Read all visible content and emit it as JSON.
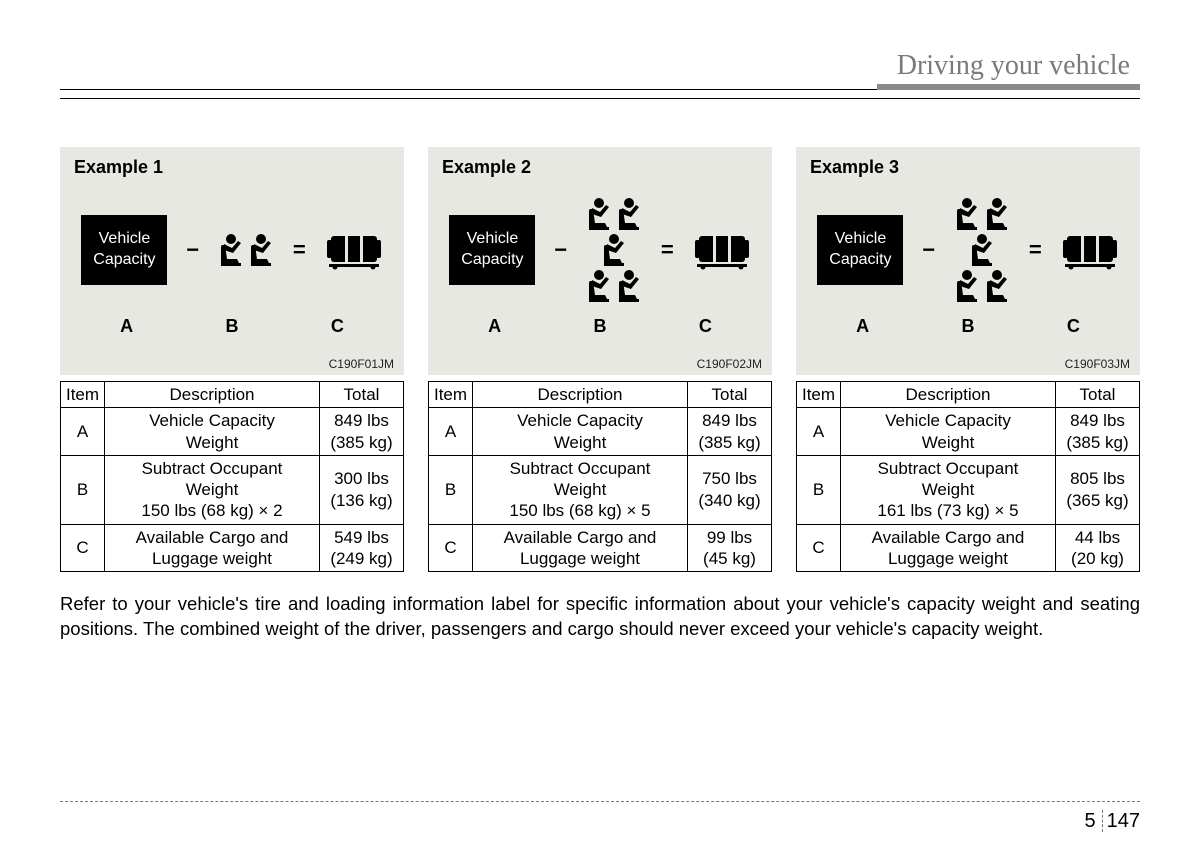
{
  "header": {
    "title": "Driving your vehicle"
  },
  "examples": [
    {
      "title": "Example 1",
      "imgcode": "C190F01JM",
      "vcap_line1": "Vehicle",
      "vcap_line2": "Capacity",
      "seat_rows": [
        2
      ],
      "abc": [
        "A",
        "B",
        "C"
      ],
      "table": {
        "headers": [
          "Item",
          "Description",
          "Total"
        ],
        "rows": [
          {
            "item": "A",
            "desc": "Vehicle Capacity<br>Weight",
            "total": "849 lbs<br>(385 kg)"
          },
          {
            "item": "B",
            "desc": "Subtract Occupant<br>Weight<br>150 lbs (68 kg) × 2",
            "total": "300 lbs<br>(136 kg)"
          },
          {
            "item": "C",
            "desc": "Available Cargo and<br>Luggage weight",
            "total": "549 lbs<br>(249 kg)"
          }
        ]
      }
    },
    {
      "title": "Example 2",
      "imgcode": "C190F02JM",
      "vcap_line1": "Vehicle",
      "vcap_line2": "Capacity",
      "seat_rows": [
        2,
        1,
        2
      ],
      "abc": [
        "A",
        "B",
        "C"
      ],
      "table": {
        "headers": [
          "Item",
          "Description",
          "Total"
        ],
        "rows": [
          {
            "item": "A",
            "desc": "Vehicle Capacity<br>Weight",
            "total": "849 lbs<br>(385 kg)"
          },
          {
            "item": "B",
            "desc": "Subtract Occupant<br>Weight<br>150 lbs (68 kg) × 5",
            "total": "750 lbs<br>(340 kg)"
          },
          {
            "item": "C",
            "desc": "Available Cargo and<br>Luggage weight",
            "total": "99 lbs<br>(45 kg)"
          }
        ]
      }
    },
    {
      "title": "Example 3",
      "imgcode": "C190F03JM",
      "vcap_line1": "Vehicle",
      "vcap_line2": "Capacity",
      "seat_rows": [
        2,
        1,
        2
      ],
      "abc": [
        "A",
        "B",
        "C"
      ],
      "table": {
        "headers": [
          "Item",
          "Description",
          "Total"
        ],
        "rows": [
          {
            "item": "A",
            "desc": "Vehicle Capacity<br>Weight",
            "total": "849 lbs<br>(385 kg)"
          },
          {
            "item": "B",
            "desc": "Subtract Occupant<br>Weight<br>161 lbs (73 kg) × 5",
            "total": "805 lbs<br>(365 kg)"
          },
          {
            "item": "C",
            "desc": "Available Cargo and<br>Luggage weight",
            "total": "44 lbs<br>(20 kg)"
          }
        ]
      }
    }
  ],
  "footer_text": "Refer to your vehicle's tire and loading information label for specific information about your vehicle's capacity weight and seating positions. The combined weight of the driver, passengers and cargo should never exceed your vehicle's capacity weight.",
  "page_number": {
    "section": "5",
    "page": "147"
  },
  "ops": {
    "minus": "−",
    "equals": "="
  }
}
